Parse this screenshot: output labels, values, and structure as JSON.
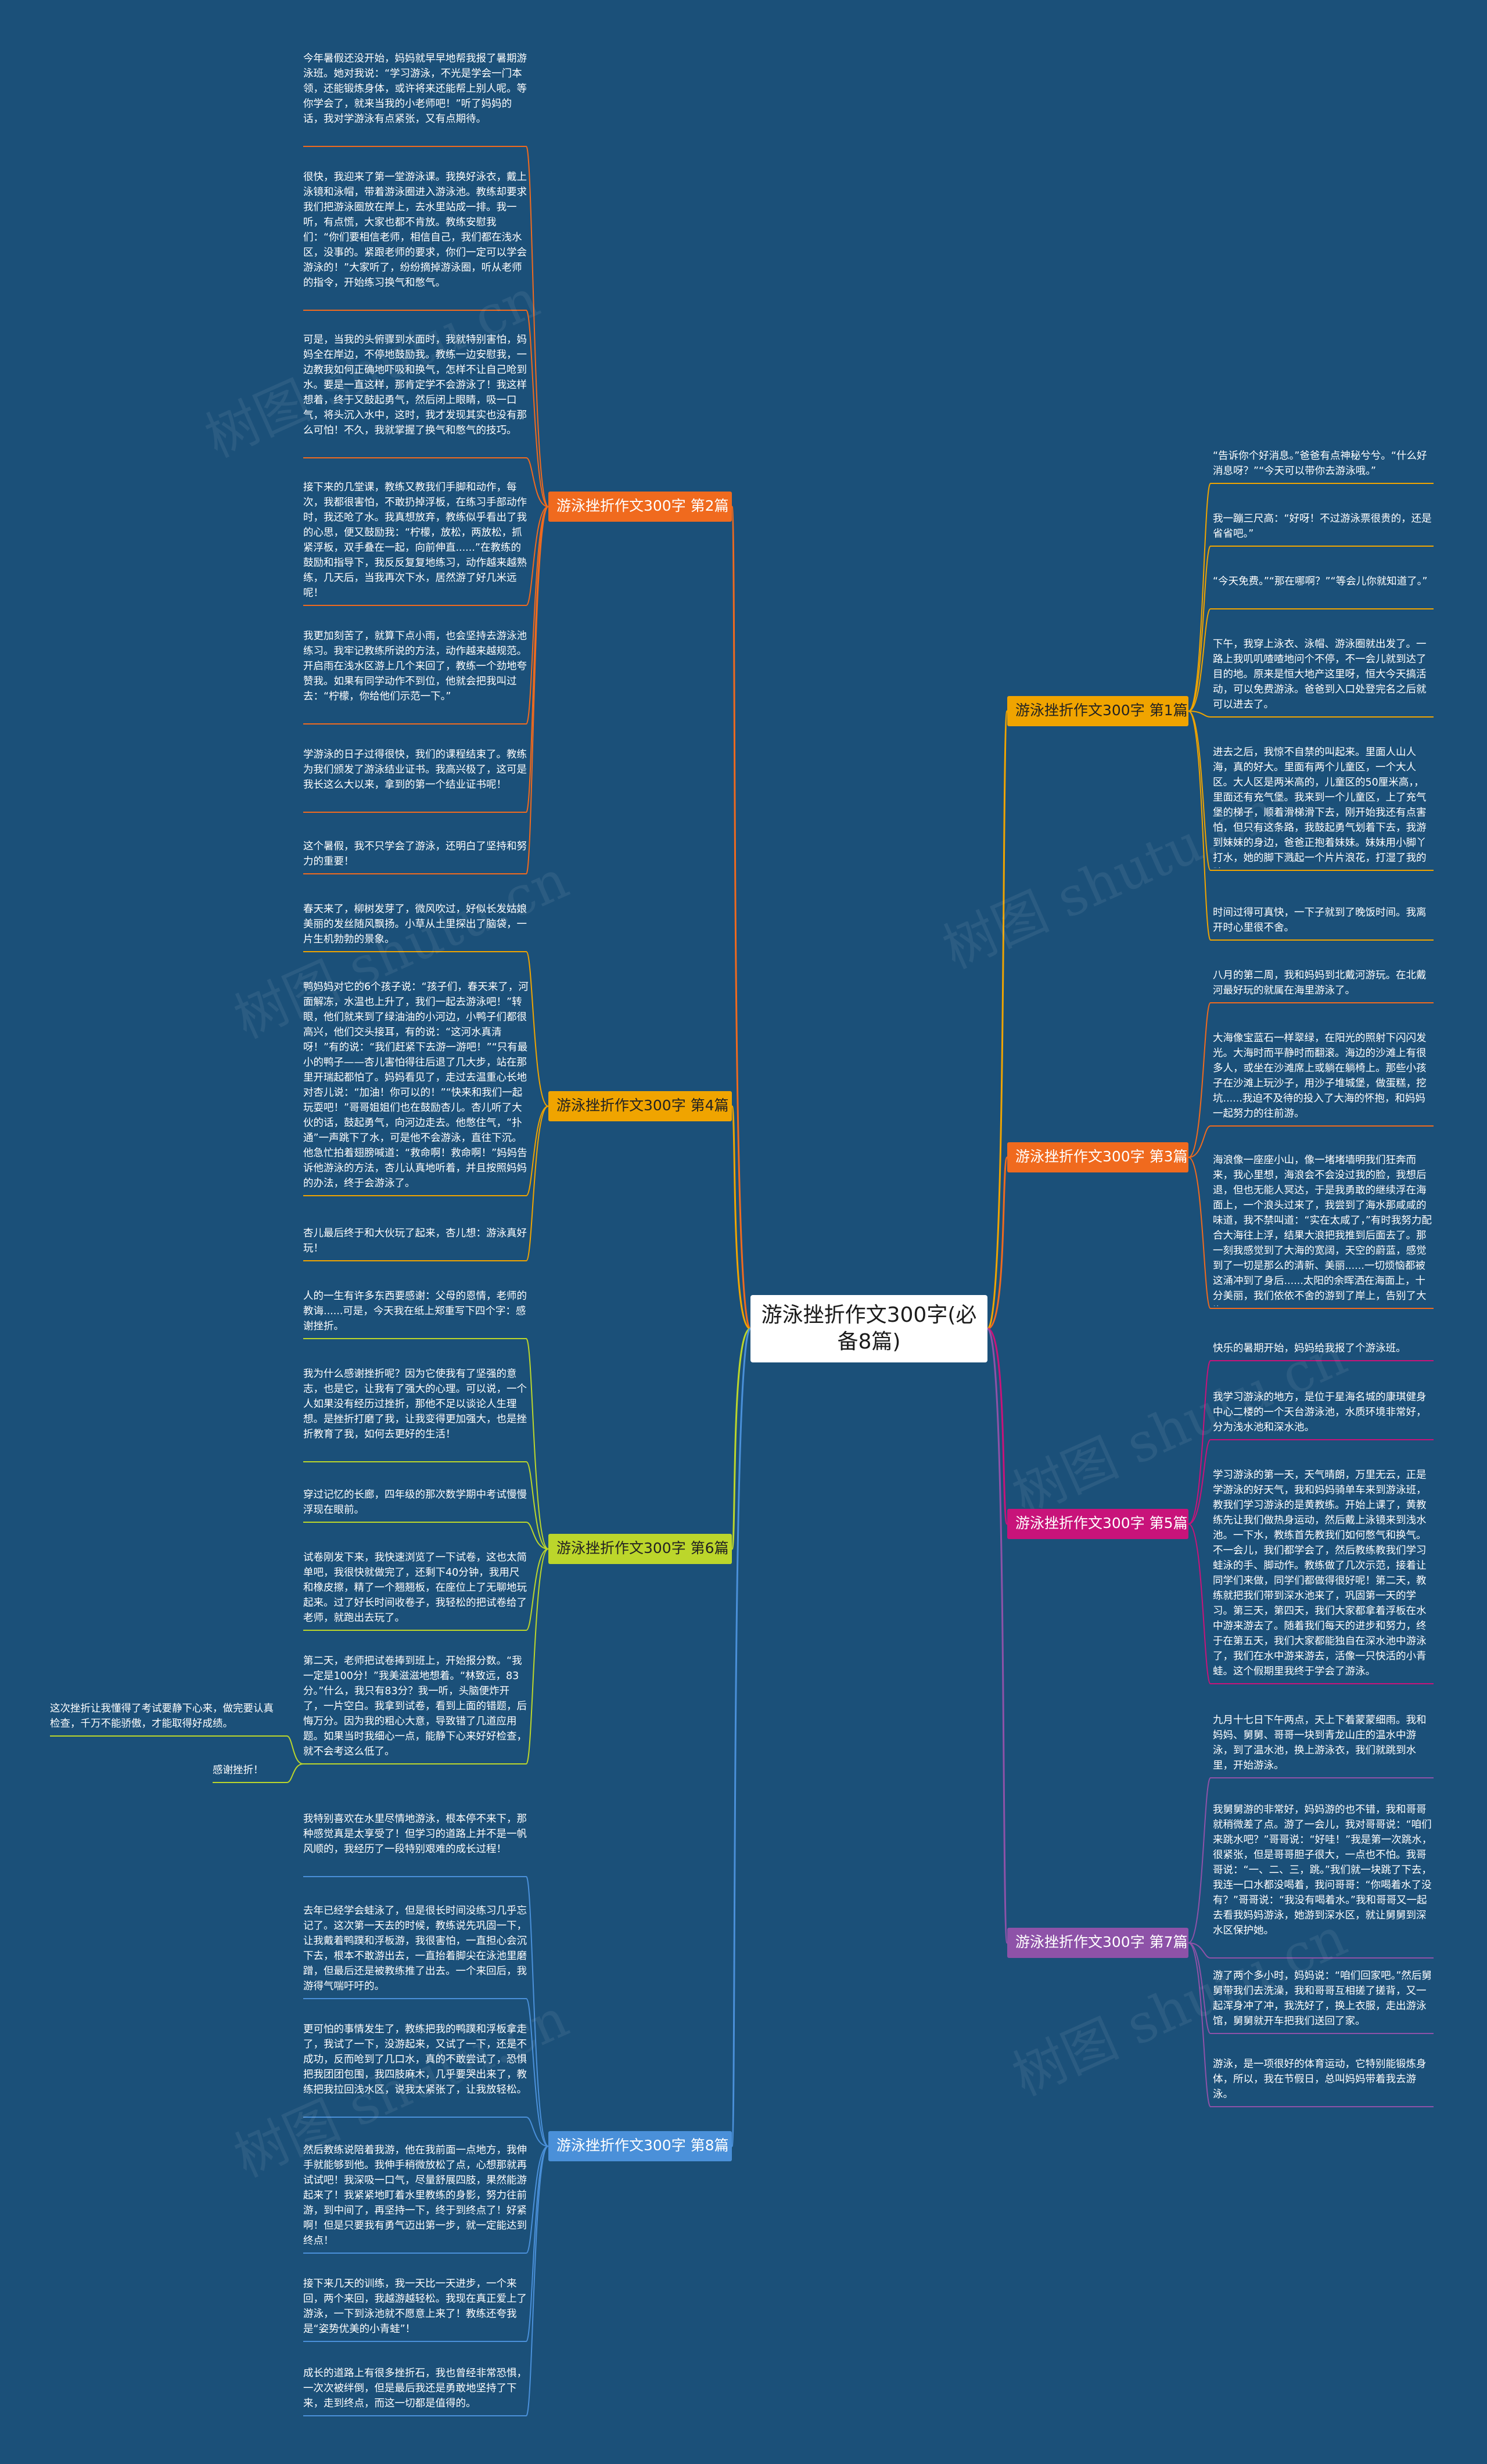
{
  "center": "游泳挫折作文300字(必备8篇)",
  "watermark": "树图 shutu.cn",
  "branches": {
    "b1": {
      "label": "游泳挫折作文300字 第1篇",
      "color": "#f0a400",
      "text_color": "#222222",
      "leaves": [
        "“告诉你个好消息。”爸爸有点神秘兮兮。“什么好消息呀？”“今天可以带你去游泳哦。”",
        "我一蹦三尺高：“好呀！不过游泳票很贵的，还是省省吧。”",
        "“今天免费。”“那在哪啊？”“等会儿你就知道了。”",
        "下午，我穿上泳衣、泳帽、游泳圈就出发了。一路上我叽叽喳喳地问个不停，不一会儿就到达了目的地。原来是恒大地产这里呀，恒大今天搞活动，可以免费游泳。爸爸到入口处登完名之后就可以进去了。",
        "进去之后，我惊不自禁的叫起来。里面人山人海，真的好大。里面有两个儿童区，一个大人区。大人区是两米高的，儿童区的50厘米高，，里面还有充气堡。我来到一个儿童区，上了充气堡的梯子，顺着滑梯滑下去，刚开始我还有点害怕，但只有这条路，我鼓起勇气划着下去，我游到妹妹的身边，爸爸正抱着妹妹。妹妹用小脚丫打水，她的脚下溅起一个片片浪花，打湿了我的脸。",
        "时间过得可真快，一下子就到了晚饭时间。我离开时心里很不舍。"
      ]
    },
    "b3": {
      "label": "游泳挫折作文300字 第3篇",
      "color": "#f06a1e",
      "text_color": "#ffffff",
      "leaves": [
        "八月的第二周，我和妈妈到北戴河游玩。在北戴河最好玩的就属在海里游泳了。",
        "大海像宝蓝石一样翠绿，在阳光的照射下闪闪发光。大海时而平静时而翻滚。海边的沙滩上有很多人，或坐在沙滩席上或躺在躺椅上。那些小孩子在沙滩上玩沙子，用沙子堆城堡，做蛋糕，挖坑......我迫不及待的投入了大海的怀抱，和妈妈一起努力的往前游。",
        "海浪像一座座小山，像一堵堵墙明我们狂奔而来，我心里想，海浪会不会没过我的脸，我想后退，但也无能人冥达，于是我勇敢的继续浮在海面上，一个浪头过来了，我尝到了海水那咸咸的味道，我不禁叫道：“实在太咸了，”有时我努力配合大海往上浮，结果大浪把我推到后面去了。那一刻我感觉到了大海的宽阔，天空的蔚蓝，感觉到了一切是那么的清新、美丽......一切烦恼都被这涌冲到了身后......太阳的余晖洒在海面上，十分美丽，我们依依不舍的游到了岸上，告别了大海。"
      ]
    },
    "b5": {
      "label": "游泳挫折作文300字 第5篇",
      "color": "#c8137a",
      "text_color": "#ffffff",
      "leaves": [
        "快乐的暑期开始，妈妈给我报了个游泳班。",
        "我学习游泳的地方，是位于星海名城的康琪健身中心二楼的一个天台游泳池，水质环境非常好，分为浅水池和深水池。",
        "学习游泳的第一天，天气晴朗，万里无云，正是学游泳的好天气，我和妈妈骑单车来到游泳班，教我们学习游泳的是黄教练。开始上课了，黄教练先让我们做热身运动，然后戴上泳镜来到浅水池。一下水，教练首先教我们如何憋气和换气。不一会儿，我们都学会了，然后教练教我们学习蛙泳的手、脚动作。教练做了几次示范，接着让同学们来做，同学们都做得很好呢！第二天，教练就把我们带到深水池来了，巩固第一天的学习。第三天，第四天，我们大家都拿着浮板在水中游来游去了。随着我们每天的进步和努力，终于在第五天，我们大家都能独自在深水池中游泳了，我们在水中游来游去，活像一只快活的小青蛙。这个假期里我终于学会了游泳。"
      ]
    },
    "b7": {
      "label": "游泳挫折作文300字 第7篇",
      "color": "#8e52a8",
      "text_color": "#ffffff",
      "leaves": [
        "九月十七日下午两点，天上下着蒙蒙细雨。我和妈妈、舅舅、哥哥一块到青龙山庄的温水中游泳，到了温水池，换上游泳衣，我们就跳到水里，开始游泳。",
        "我舅舅游的非常好，妈妈游的也不错，我和哥哥就稍微差了点。游了一会儿，我对哥哥说：“咱们来跳水吧？”哥哥说：“好哇！”我是第一次跳水，很紧张，但是哥哥胆子很大，一点也不怕。我哥哥说：“一、二、三，跳。”我们就一块跳了下去，我连一口水都没喝着，我问哥哥：“你喝着水了没有？”哥哥说：“我没有喝着水。”我和哥哥又一起去看我妈妈游泳，她游到深水区，就让舅舅到深水区保护她。",
        "游了两个多小时，妈妈说：“咱们回家吧。”然后舅舅带我们去洗澡，我和哥哥互相搓了搓背，又一起浑身冲了冲，我洗好了，换上衣服，走出游泳馆，舅舅就开车把我们送回了家。",
        "游泳，是一项很好的体育运动，它特别能锻炼身体，所以，我在节假日，总叫妈妈带着我去游泳。"
      ]
    },
    "b2": {
      "label": "游泳挫折作文300字 第2篇",
      "color": "#f06a1e",
      "text_color": "#ffffff",
      "leaves": [
        "今年暑假还没开始，妈妈就早早地帮我报了暑期游泳班。她对我说：“学习游泳，不光是学会一门本领，还能锻炼身体，或许将来还能帮上别人呢。等你学会了，就来当我的小老师吧！”听了妈妈的话，我对学游泳有点紧张，又有点期待。",
        "很快，我迎来了第一堂游泳课。我换好泳衣，戴上泳镜和泳帽，带着游泳圈进入游泳池。教练却要求我们把游泳圈放在岸上，去水里站成一排。我一听，有点慌，大家也都不肯放。教练安慰我们：“你们要相信老师，相信自己，我们都在浅水区，没事的。紧跟老师的要求，你们一定可以学会游泳的！”大家听了，纷纷摘掉游泳圈，听从老师的指令，开始练习换气和憋气。",
        "可是，当我的头俯骤到水面时，我就特别害怕，妈妈全在岸边，不停地鼓励我。教练一边安慰我，一边教我如何正确地吓吸和换气，怎样不让自己呛到水。要是一直这样，那肯定学不会游泳了！我这样想着，终于又鼓起勇气，然后闭上眼睛，吸一口气，将头沉入水中，这时，我才发现其实也没有那么可怕！不久，我就掌握了换气和憋气的技巧。",
        "接下来的几堂课，教练又教我们手脚和动作，每次，我都很害怕，不敢扔掉浮板，在练习手部动作时，我还呛了水。我真想放弃，教练似乎看出了我的心思，便又鼓励我：“柠檬，放松，两放松，抓紧浮板，双手叠在一起，向前伸直......”在教练的鼓励和指导下，我反反复复地练习，动作越来越熟练，几天后，当我再次下水，居然游了好几米远呢！",
        "我更加刻苦了，就算下点小雨，也会坚持去游泳池练习。我牢记教练所说的方法，动作越来越规范。开启雨在浅水区游上几个来回了，教练一个劲地夸赞我。如果有同学动作不到位，他就会把我叫过去：“柠檬，你给他们示范一下。”",
        "学游泳的日子过得很快，我们的课程结束了。教练为我们颁发了游泳结业证书。我高兴极了，这可是我长这么大以来，拿到的第一个结业证书呢！",
        "这个暑假，我不只学会了游泳，还明白了坚持和努力的重要！"
      ]
    },
    "b4": {
      "label": "游泳挫折作文300字 第4篇",
      "color": "#f0a400",
      "text_color": "#222222",
      "leaves": [
        "春天来了，柳树发芽了，微风吹过，好似长发姑娘美丽的发丝随风飘扬。小草从土里探出了脑袋，一片生机勃勃的景象。",
        "鸭妈妈对它的6个孩子说：“孩子们，春天来了，河面解冻，水温也上升了，我们一起去游泳吧！”转眼，他们就来到了绿油油的小河边，小鸭子们都很高兴，他们交头接耳，有的说：“这河水真清呀！”有的说：“我们赶紧下去游一游吧！”“只有最小的鸭子——杏儿害怕得往后退了几大步，站在那里开瑞起都怕了。妈妈看见了，走过去温重心长地对杏儿说：“加油！你可以的！”“快来和我们一起玩耍吧！”哥哥姐姐们也在鼓励杏儿。杏儿听了大伙的话，鼓起勇气，向河边走去。他憋住气，“扑通”一声跳下了水，可是他不会游泳，直往下沉。他急忙拍着翅膀喊道：“救命啊！救命啊！”妈妈告诉他游泳的方法，杏儿认真地听着，并且按照妈妈的办法，终于会游泳了。",
        "杏儿最后终于和大伙玩了起来，杏儿想：游泳真好玩！"
      ]
    },
    "b6": {
      "label": "游泳挫折作文300字 第6篇",
      "color": "#bcd62b",
      "text_color": "#222222",
      "leaves": [
        "人的一生有许多东西要感谢：父母的恩情，老师的教诲......可是，今天我在纸上郑重写下四个字：感谢挫折。",
        "我为什么感谢挫折呢？因为它使我有了坚强的意志，也是它，让我有了强大的心理。可以说，一个人如果没有经历过挫折，那他不足以谈论人生理想。是挫折打磨了我，让我变得更加强大，也是挫折教育了我，如何去更好的生活！",
        "穿过记忆的长廊，四年级的那次数学期中考试慢慢浮现在眼前。",
        "试卷刚发下来，我快速浏览了一下试卷，这也太简单吧，我很快就做完了，还剩下40分钟，我用尺和橡皮擦，精了一个翘翘板，在座位上了无聊地玩起来。过了好长时间收卷子，我轻松的把试卷给了老师，就跑出去玩了。",
        "第二天，老师把试卷捧到班上，开始报分数。“我一定是100分！”我美滋滋地想着。“林致远，83分。”什么，我只有83分？我一听，头脑便炸开了，一片空白。我拿到试卷，看到上面的错题，后悔万分。因为我的粗心大意，导致错了几道应用题。如果当时我细心一点，能静下心来好好检查，就不会考这么低了。"
      ],
      "sub": {
        "text": "这次挫折让我懂得了考试要静下心来，做完要认真检查，千万不能骄傲，才能取得好成绩。",
        "label": "感谢挫折！"
      }
    },
    "b8": {
      "label": "游泳挫折作文300字 第8篇",
      "color": "#4a90d9",
      "text_color": "#ffffff",
      "leaves": [
        "我特别喜欢在水里尽情地游泳，根本停不来下，那种感觉真是太享受了！但学习的道路上并不是一帆风顺的，我经历了一段特别艰难的成长过程！",
        "去年已经学会蛙泳了，但是很长时间没练习几乎忘记了。这次第一天去的时候，教练说先巩固一下，让我戴着鸭蹼和浮板游，我很害怕，一直担心会沉下去，根本不敢游出去，一直抬着脚尖在泳池里磨蹭，但最后还是被教练推了出去。一个来回后，我游得气喘吁吁的。",
        "更可怕的事情发生了，教练把我的鸭蹼和浮板拿走了，我试了一下，没游起来，又试了一下，还是不成功，反而呛到了几口水，真的不敢尝试了，恐惧把我团团包围，我四肢麻木，几乎要哭出来了，教练把我拉回浅水区，说我太紧张了，让我放轻松。",
        "然后教练说陪着我游，他在我前面一点地方，我伸手就能够到他。我伸手稍微放松了点，心想那就再试试吧！我深吸一口气，尽量舒展四肢，果然能游起来了！我紧紧地盯着水里教练的身影，努力往前游，到中间了，再坚持一下，终于到终点了！好紧啊！但是只要我有勇气迈出第一步，就一定能达到终点！",
        "接下来几天的训练，我一天比一天进步，一个来回，两个来回，我越游越轻松。我现在真正爱上了游泳，一下到泳池就不愿意上来了！教练还夸我是“姿势优美的小青蛙”！",
        "成长的道路上有很多挫折石，我也曾经非常恐惧，一次次被绊倒，但是最后我还是勇敢地坚持了下来，走到终点，而这一切都是值得的。"
      ]
    }
  }
}
